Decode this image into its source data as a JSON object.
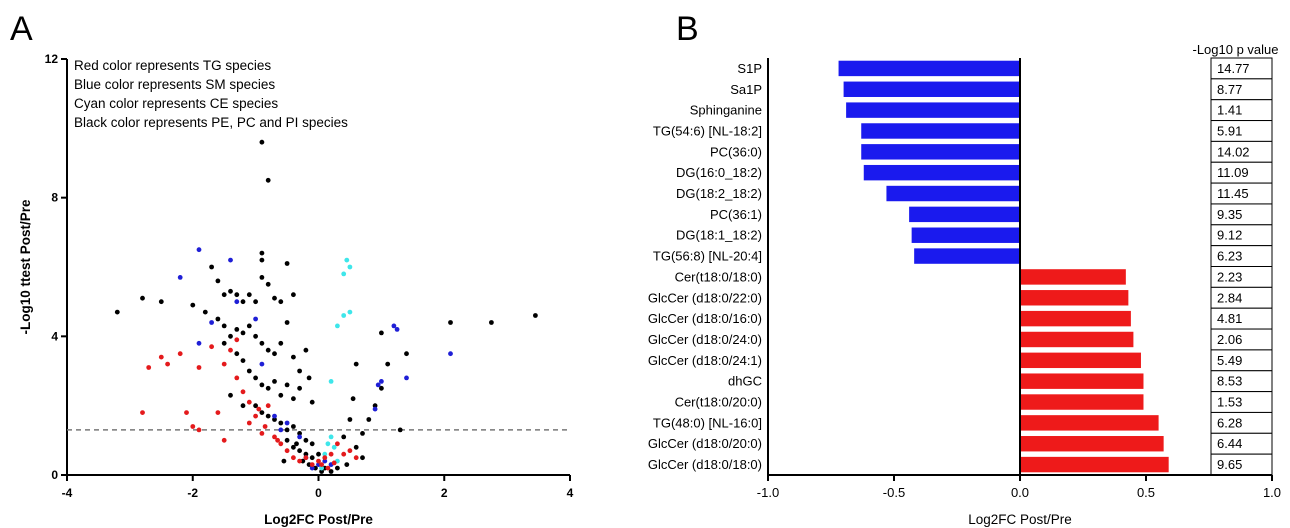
{
  "panel_labels": {
    "a": "A",
    "b": "B"
  },
  "chart_data": [
    {
      "type": "scatter",
      "panel": "A",
      "xlabel": "Log2FC Post/Pre",
      "ylabel": "-Log10 ttest Post/Pre",
      "xlim": [
        -4,
        4
      ],
      "ylim": [
        0,
        12
      ],
      "xticks": [
        -4,
        -2,
        0,
        2,
        4
      ],
      "yticks": [
        0,
        4,
        8,
        12
      ],
      "threshold_y": 1.3,
      "legend_lines": [
        "Red color represents TG species",
        "Blue color represents SM species",
        "Cyan color represents CE species",
        "Black color represents PE, PC and PI species"
      ],
      "colors": {
        "TG": "#e41a1c",
        "SM": "#1f1fd6",
        "CE": "#3ee6ea",
        "PE_PC_PI": "#000000"
      },
      "series": [
        {
          "group": "TG",
          "points": [
            [
              -2.8,
              1.8
            ],
            [
              -2.7,
              3.1
            ],
            [
              -2.5,
              3.4
            ],
            [
              -2.4,
              3.2
            ],
            [
              -2.2,
              3.5
            ],
            [
              -2.1,
              1.8
            ],
            [
              -2.0,
              1.4
            ],
            [
              -1.9,
              1.3
            ],
            [
              -1.9,
              3.1
            ],
            [
              -1.6,
              1.8
            ],
            [
              -1.5,
              1.0
            ],
            [
              -1.4,
              3.6
            ],
            [
              -1.3,
              3.9
            ],
            [
              -1.3,
              2.8
            ],
            [
              -1.2,
              2.4
            ],
            [
              -1.1,
              2.1
            ],
            [
              -1.1,
              1.5
            ],
            [
              -1.0,
              1.7
            ],
            [
              -0.9,
              1.2
            ],
            [
              -0.8,
              2.0
            ],
            [
              -0.7,
              1.1
            ],
            [
              -0.6,
              0.9
            ],
            [
              -0.5,
              0.7
            ],
            [
              -0.4,
              0.5
            ],
            [
              -0.3,
              0.4
            ],
            [
              -0.2,
              0.5
            ],
            [
              -0.1,
              0.3
            ],
            [
              0.0,
              0.4
            ],
            [
              0.1,
              0.5
            ],
            [
              0.2,
              0.6
            ],
            [
              0.3,
              0.9
            ],
            [
              0.4,
              0.6
            ],
            [
              0.5,
              0.7
            ],
            [
              0.6,
              0.5
            ],
            [
              -1.7,
              3.7
            ],
            [
              -1.5,
              3.2
            ],
            [
              -0.95,
              1.9
            ],
            [
              -0.85,
              1.4
            ],
            [
              -0.65,
              1.0
            ],
            [
              0.05,
              0.3
            ],
            [
              0.15,
              0.2
            ],
            [
              0.25,
              0.35
            ]
          ]
        },
        {
          "group": "SM",
          "points": [
            [
              -2.2,
              5.7
            ],
            [
              -1.9,
              6.5
            ],
            [
              -1.9,
              3.8
            ],
            [
              -1.7,
              4.4
            ],
            [
              -1.4,
              6.2
            ],
            [
              -1.3,
              5.0
            ],
            [
              -1.0,
              4.5
            ],
            [
              -0.9,
              3.2
            ],
            [
              -0.7,
              1.7
            ],
            [
              -0.5,
              1.5
            ],
            [
              -0.3,
              1.1
            ],
            [
              -0.2,
              0.5
            ],
            [
              0.0,
              0.3
            ],
            [
              0.1,
              0.4
            ],
            [
              0.2,
              0.3
            ],
            [
              0.9,
              1.9
            ],
            [
              1.0,
              2.7
            ],
            [
              1.2,
              4.3
            ],
            [
              1.4,
              2.8
            ],
            [
              2.1,
              3.5
            ],
            [
              -0.6,
              1.3
            ],
            [
              -0.1,
              0.2
            ],
            [
              0.95,
              2.6
            ],
            [
              1.25,
              4.2
            ]
          ]
        },
        {
          "group": "CE",
          "points": [
            [
              0.2,
              2.7
            ],
            [
              0.2,
              1.1
            ],
            [
              0.3,
              4.3
            ],
            [
              0.4,
              4.6
            ],
            [
              0.4,
              5.8
            ],
            [
              0.45,
              6.2
            ],
            [
              0.5,
              6.0
            ],
            [
              0.5,
              4.7
            ],
            [
              0.25,
              0.8
            ],
            [
              0.15,
              0.9
            ],
            [
              0.1,
              0.6
            ],
            [
              0.3,
              0.4
            ],
            [
              0.05,
              0.2
            ],
            [
              0.2,
              0.3
            ]
          ]
        },
        {
          "group": "PE_PC_PI",
          "points": [
            [
              -0.9,
              9.6
            ],
            [
              -0.8,
              8.5
            ],
            [
              -0.9,
              6.4
            ],
            [
              -0.9,
              6.2
            ],
            [
              -0.5,
              6.1
            ],
            [
              -1.7,
              6.0
            ],
            [
              -1.6,
              5.6
            ],
            [
              -1.5,
              5.2
            ],
            [
              -1.4,
              5.3
            ],
            [
              -1.3,
              5.2
            ],
            [
              -1.2,
              5.0
            ],
            [
              -1.1,
              5.2
            ],
            [
              -1.0,
              5.0
            ],
            [
              -0.9,
              5.7
            ],
            [
              -0.8,
              5.5
            ],
            [
              -0.7,
              5.1
            ],
            [
              -0.6,
              5.0
            ],
            [
              -0.4,
              5.2
            ],
            [
              -3.2,
              4.7
            ],
            [
              -2.8,
              5.1
            ],
            [
              -2.5,
              5.0
            ],
            [
              -2.0,
              4.9
            ],
            [
              -1.8,
              4.7
            ],
            [
              -1.6,
              4.5
            ],
            [
              -1.5,
              4.3
            ],
            [
              -1.4,
              4.0
            ],
            [
              -1.3,
              4.2
            ],
            [
              -1.2,
              4.1
            ],
            [
              -1.1,
              4.3
            ],
            [
              -1.0,
              4.0
            ],
            [
              -0.9,
              3.8
            ],
            [
              -0.8,
              3.6
            ],
            [
              -0.7,
              3.5
            ],
            [
              -0.6,
              3.8
            ],
            [
              -0.5,
              4.4
            ],
            [
              -0.4,
              3.4
            ],
            [
              -0.3,
              3.0
            ],
            [
              -0.2,
              3.6
            ],
            [
              -1.5,
              3.8
            ],
            [
              -1.3,
              3.5
            ],
            [
              -1.2,
              3.3
            ],
            [
              -1.1,
              3.0
            ],
            [
              -1.0,
              2.8
            ],
            [
              -0.9,
              2.6
            ],
            [
              -0.8,
              2.5
            ],
            [
              -0.7,
              2.7
            ],
            [
              -0.6,
              2.3
            ],
            [
              -0.5,
              2.6
            ],
            [
              -0.4,
              2.2
            ],
            [
              -0.3,
              2.5
            ],
            [
              -1.4,
              2.3
            ],
            [
              -1.2,
              2.0
            ],
            [
              -1.0,
              2.0
            ],
            [
              -0.9,
              1.8
            ],
            [
              -0.8,
              1.7
            ],
            [
              -0.7,
              1.6
            ],
            [
              -0.6,
              1.5
            ],
            [
              -0.5,
              1.3
            ],
            [
              -0.4,
              1.4
            ],
            [
              -0.3,
              1.2
            ],
            [
              -0.2,
              1.0
            ],
            [
              -0.1,
              0.9
            ],
            [
              -0.5,
              1.0
            ],
            [
              -0.4,
              0.8
            ],
            [
              -0.3,
              0.7
            ],
            [
              -0.2,
              0.6
            ],
            [
              -0.1,
              0.5
            ],
            [
              0.0,
              0.6
            ],
            [
              -0.35,
              0.9
            ],
            [
              -0.25,
              0.4
            ],
            [
              -0.15,
              0.3
            ],
            [
              -0.05,
              0.2
            ],
            [
              0.05,
              0.1
            ],
            [
              0.1,
              0.2
            ],
            [
              0.2,
              0.1
            ],
            [
              0.3,
              0.2
            ],
            [
              0.6,
              0.8
            ],
            [
              0.7,
              1.2
            ],
            [
              0.8,
              1.6
            ],
            [
              0.9,
              2.0
            ],
            [
              1.0,
              2.5
            ],
            [
              1.1,
              3.2
            ],
            [
              1.3,
              1.3
            ],
            [
              1.0,
              4.1
            ],
            [
              1.4,
              3.5
            ],
            [
              2.1,
              4.4
            ],
            [
              2.75,
              4.4
            ],
            [
              3.45,
              4.6
            ],
            [
              0.4,
              1.1
            ],
            [
              0.5,
              1.6
            ],
            [
              0.55,
              2.2
            ],
            [
              0.6,
              3.2
            ],
            [
              -0.15,
              2.8
            ],
            [
              -0.1,
              2.1
            ],
            [
              0.7,
              0.5
            ],
            [
              0.45,
              0.3
            ],
            [
              -0.55,
              0.4
            ]
          ]
        }
      ]
    },
    {
      "type": "bar",
      "panel": "B",
      "orientation": "horizontal",
      "xlabel": "Log2FC Post/Pre",
      "xlim": [
        -1.0,
        1.0
      ],
      "xticks": [
        "-1.0",
        "-0.5",
        "0.0",
        "0.5",
        "1.0"
      ],
      "pvalue_header": "-Log10 p value",
      "colors": {
        "negative": "#1a1aee",
        "positive": "#ee1a1a"
      },
      "categories": [
        "S1P",
        "Sa1P",
        "Sphinganine",
        "TG(54:6) [NL-18:2]",
        "PC(36:0)",
        "DG(16:0_18:2)",
        "DG(18:2_18:2)",
        "PC(36:1)",
        "DG(18:1_18:2)",
        "TG(56:8) [NL-20:4]",
        "Cer(t18:0/18:0)",
        "GlcCer (d18:0/22:0)",
        "GlcCer (d18:0/16:0)",
        "GlcCer (d18:0/24:0)",
        "GlcCer (d18:0/24:1)",
        "dhGC",
        "Cer(t18:0/20:0)",
        "TG(48:0) [NL-16:0]",
        "GlcCer (d18:0/20:0)",
        "GlcCer (d18:0/18:0)"
      ],
      "values": [
        -0.72,
        -0.7,
        -0.69,
        -0.63,
        -0.63,
        -0.62,
        -0.53,
        -0.44,
        -0.43,
        -0.42,
        0.42,
        0.43,
        0.44,
        0.45,
        0.48,
        0.49,
        0.49,
        0.55,
        0.57,
        0.59
      ],
      "pvalues": [
        "14.77",
        "8.77",
        "1.41",
        "5.91",
        "14.02",
        "11.09",
        "11.45",
        "9.35",
        "9.12",
        "6.23",
        "2.23",
        "2.84",
        "4.81",
        "2.06",
        "5.49",
        "8.53",
        "1.53",
        "6.28",
        "6.44",
        "9.65"
      ]
    }
  ]
}
